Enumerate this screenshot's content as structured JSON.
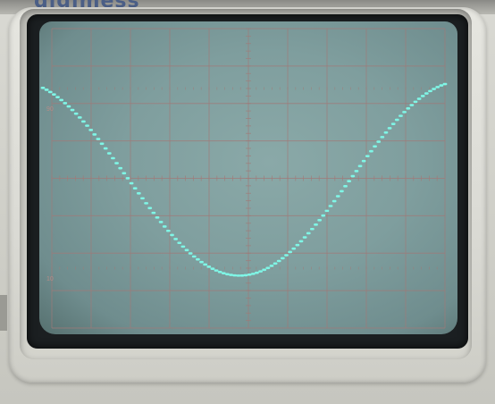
{
  "brand": {
    "name": "digimess"
  },
  "screen": {
    "graticule": {
      "major_divisions_x": 10,
      "major_divisions_y": 8,
      "minor_ticks_per_division": 5
    },
    "labels": {
      "upper": "90",
      "lower": "10"
    },
    "colors": {
      "phosphor": "#7ff6e6",
      "screen": "#7f9e9e",
      "grid": "#a07a78"
    }
  },
  "trace": {
    "waveform": "sine",
    "cycles_visible": 0.9,
    "amplitude_divisions": 2.6
  }
}
